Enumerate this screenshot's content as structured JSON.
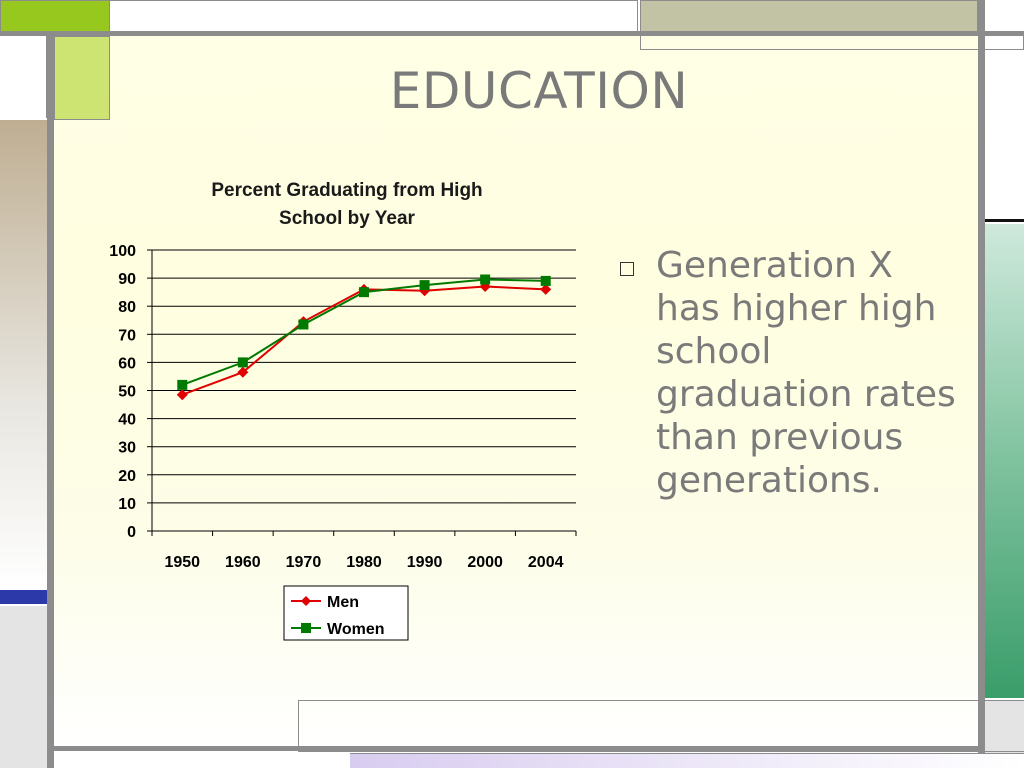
{
  "slide": {
    "title": "EDUCATION",
    "bullet_text": "Generation X has higher high school graduation rates than previous generations.",
    "bullet_marker": "square-bullet-icon"
  },
  "colors": {
    "men": "#e00000",
    "women": "#007a00",
    "accent_green": "#cde472",
    "accent_olive": "#c2c2a4",
    "accent_tan": "#bfae92",
    "accent_blue": "#2b3aa8",
    "accent_teal": "#3a9d6a",
    "frame_gray": "#8c8c8c"
  },
  "chart_data": {
    "type": "line",
    "title": "Percent Graduating from High School by Year",
    "title_lines": [
      "Percent Graduating from High",
      "School by Year"
    ],
    "categories": [
      "1950",
      "1960",
      "1970",
      "1980",
      "1990",
      "2000",
      "2004"
    ],
    "ylim": [
      0,
      100
    ],
    "yticks": [
      0,
      10,
      20,
      30,
      40,
      50,
      60,
      70,
      80,
      90,
      100
    ],
    "grid": true,
    "legend": "bottom",
    "series": [
      {
        "name": "Men",
        "marker": "diamond",
        "values": [
          48.5,
          56.5,
          74.5,
          86,
          85.5,
          87,
          86
        ]
      },
      {
        "name": "Women",
        "marker": "square",
        "values": [
          52,
          60,
          73.5,
          85,
          87.5,
          89.5,
          89
        ]
      }
    ]
  }
}
